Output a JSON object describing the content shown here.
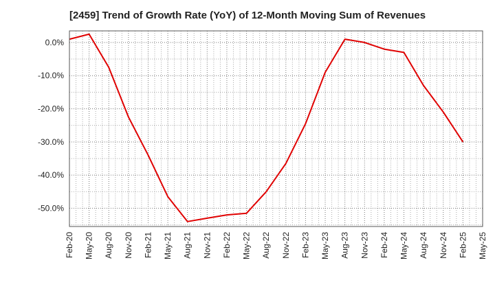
{
  "chart_data": {
    "type": "line",
    "title": "[2459]  Trend of Growth Rate (YoY) of 12-Month Moving Sum of Revenues",
    "xlabel": "",
    "ylabel": "",
    "x_tick_labels": [
      "Feb-20",
      "May-20",
      "Aug-20",
      "Nov-20",
      "Feb-21",
      "May-21",
      "Aug-21",
      "Nov-21",
      "Feb-22",
      "May-22",
      "Aug-22",
      "Nov-22",
      "Feb-23",
      "May-23",
      "Aug-23",
      "Nov-23",
      "Feb-24",
      "May-24",
      "Aug-24",
      "Nov-24",
      "Feb-25",
      "May-25"
    ],
    "y_ticks": [
      0,
      -10,
      -20,
      -30,
      -40,
      -50
    ],
    "y_tick_labels": [
      "0.0%",
      "-10.0%",
      "-20.0%",
      "-30.0%",
      "-40.0%",
      "-50.0%"
    ],
    "ylim": [
      -55.5,
      3.5
    ],
    "grid": true,
    "legend": "none",
    "series": [
      {
        "color": "#e00000",
        "x": [
          "Feb-20",
          "May-20",
          "Aug-20",
          "Nov-20",
          "Feb-21",
          "May-21",
          "Aug-21",
          "Nov-21",
          "Feb-22",
          "May-22",
          "Aug-22",
          "Nov-22",
          "Feb-23",
          "May-23",
          "Aug-23",
          "Nov-23",
          "Feb-24",
          "May-24",
          "Aug-24",
          "Nov-24",
          "Feb-25"
        ],
        "values": [
          1.0,
          2.5,
          -7.5,
          -22.5,
          -34.0,
          -46.5,
          -54.0,
          -53.0,
          -52.0,
          -51.5,
          -45.0,
          -36.5,
          -24.5,
          -9.0,
          1.0,
          0.0,
          -2.0,
          -3.0,
          -13.0,
          -21.0,
          -30.0
        ]
      }
    ]
  }
}
